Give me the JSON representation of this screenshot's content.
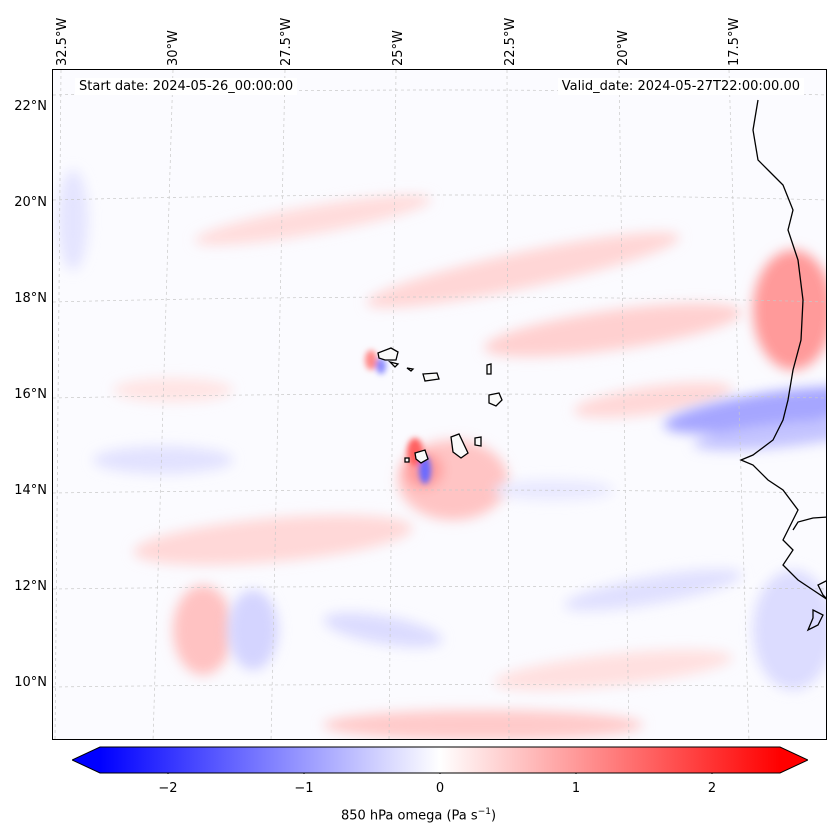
{
  "map": {
    "start_date": "Start date: 2024-05-26_00:00:00",
    "valid_date": "Valid_date: 2024-05-27T22:00:00.00",
    "longitude_labels": [
      "32.5°W",
      "30°W",
      "27.5°W",
      "25°W",
      "22.5°W",
      "20°W",
      "17.5°W"
    ],
    "latitude_labels": [
      "22°N",
      "20°N",
      "18°N",
      "16°N",
      "14°N",
      "12°N",
      "10°N"
    ],
    "variable": "850 hPa omega",
    "units": "Pa s",
    "units_exponent": "−1",
    "colormap": "bwr",
    "colors": {
      "min": "#0000ff",
      "mid": "#ffffff",
      "max": "#ff0000"
    }
  },
  "colorbar": {
    "ticks": [
      "−2",
      "−1",
      "0",
      "1",
      "2"
    ],
    "vmin": -2.5,
    "vmax": 2.5,
    "extend": "both"
  }
}
